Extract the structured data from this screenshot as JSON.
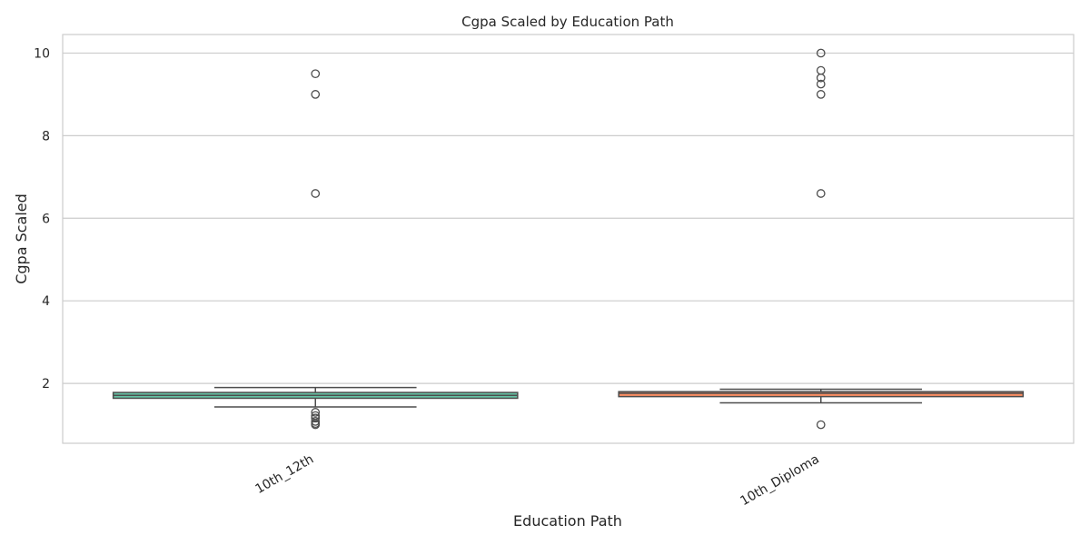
{
  "chart_data": {
    "type": "box",
    "title": "Cgpa Scaled by Education Path",
    "xlabel": "Education Path",
    "ylabel": "Cgpa Scaled",
    "categories": [
      "10th_12th",
      "10th_Diploma"
    ],
    "ylim": [
      0.55,
      10.45
    ],
    "yticks": [
      2,
      4,
      6,
      8,
      10
    ],
    "grid": true,
    "box_colors": [
      "#66c2a5",
      "#fc8d62"
    ],
    "line_color": "#4d4d4d",
    "series": [
      {
        "category": "10th_12th",
        "whisker_low": 1.43,
        "q1": 1.64,
        "median": 1.71,
        "q3": 1.78,
        "whisker_high": 1.9,
        "outliers": [
          9.5,
          9.0,
          6.6,
          1.3,
          1.22,
          1.16,
          1.08,
          1.03,
          1.0
        ]
      },
      {
        "category": "10th_Diploma",
        "whisker_low": 1.53,
        "q1": 1.68,
        "median": 1.76,
        "q3": 1.8,
        "whisker_high": 1.86,
        "outliers": [
          10.0,
          9.58,
          9.4,
          9.25,
          9.0,
          6.6,
          1.0
        ]
      }
    ]
  }
}
